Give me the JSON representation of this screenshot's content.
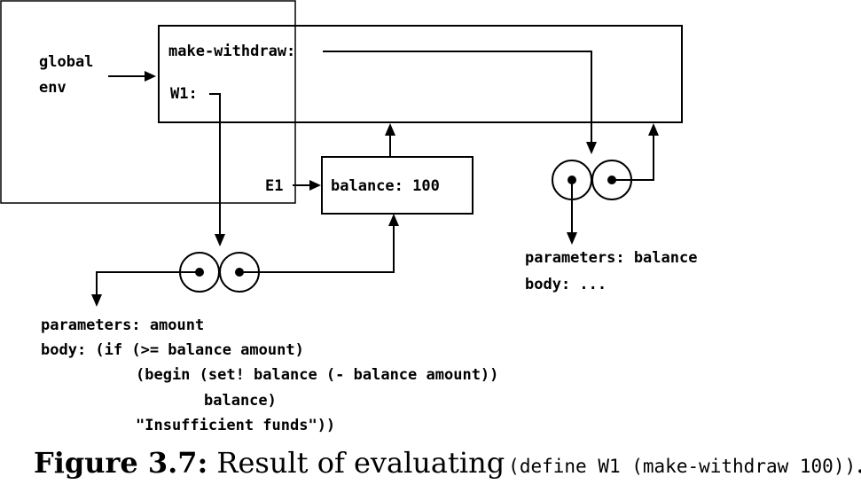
{
  "global_env": {
    "line1": "global",
    "line2": "env"
  },
  "global_frame": {
    "binding1": "make-withdraw:",
    "binding2": "W1:"
  },
  "e1": {
    "label": "E1",
    "binding": "balance: 100"
  },
  "proc_make_withdraw": {
    "params": "parameters: balance",
    "body": "body: ..."
  },
  "proc_w1": {
    "params": "parameters: amount",
    "body_lines": [
      "body: (if (>= balance amount)",
      "(begin (set! balance (- balance amount))",
      "balance)",
      "\"Insufficient funds\"))"
    ]
  },
  "caption": {
    "number": "Figure 3.7:",
    "text": "Result of evaluating",
    "code": "(define W1 (make-withdraw 100))",
    "end": "."
  }
}
